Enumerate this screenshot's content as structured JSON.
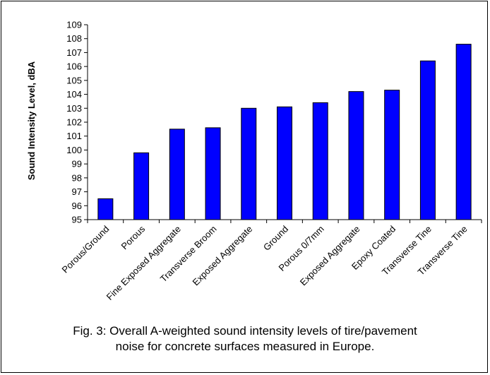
{
  "chart_data": {
    "type": "bar",
    "ylabel": "Sound Intensity Level, dBA",
    "xlabel": "",
    "ylim": [
      95,
      109
    ],
    "yticks": [
      95,
      96,
      97,
      98,
      99,
      100,
      101,
      102,
      103,
      104,
      105,
      106,
      107,
      108,
      109
    ],
    "categories": [
      "Porous/Ground",
      "Porous",
      "Fine Exposed Aggregate",
      "Transverse Broom",
      "Exposed Aggregate",
      "Ground",
      "Porous 0/7mm",
      "Exposed Aggregate",
      "Epoxy Coated",
      "Transverse Tine",
      "Transverse Tine"
    ],
    "values": [
      96.5,
      99.8,
      101.5,
      101.6,
      103.0,
      103.1,
      103.4,
      104.2,
      104.3,
      106.4,
      107.6
    ],
    "bar_color": "#0000ff",
    "bar_edge_color": "#000000",
    "grid": false
  },
  "caption": {
    "line1": "Fig. 3:  Overall A-weighted sound intensity levels of tire/pavement",
    "line2": "noise for concrete surfaces measured in Europe."
  }
}
